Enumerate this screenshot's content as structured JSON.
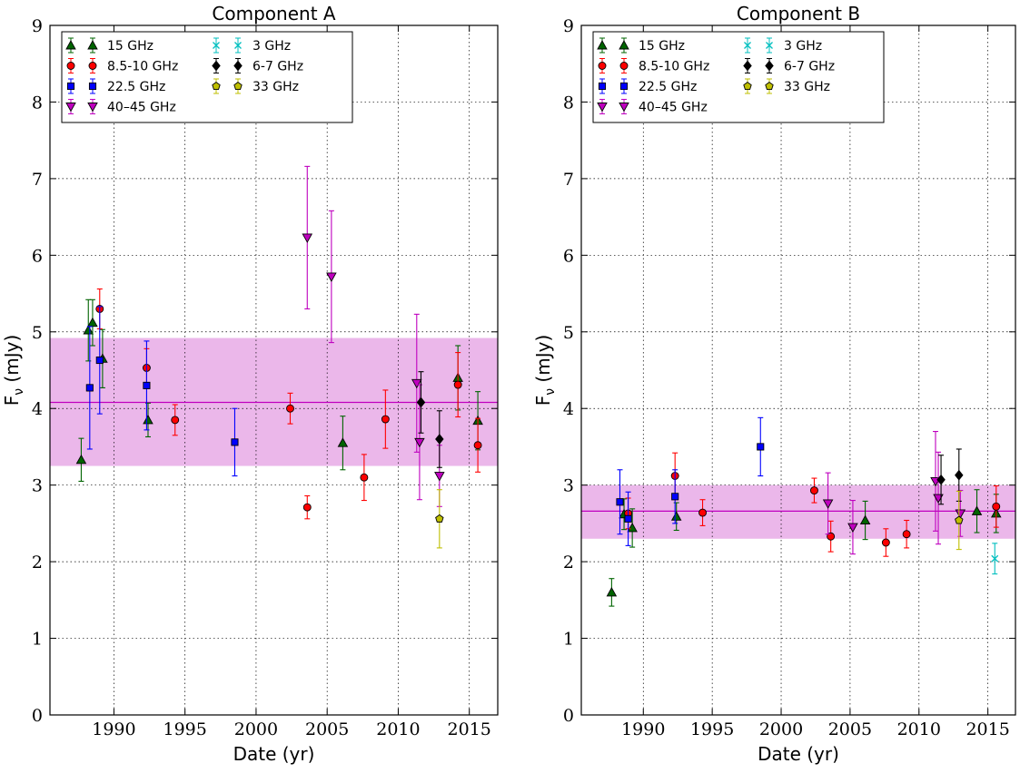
{
  "chart_data": [
    {
      "type": "scatter",
      "title": "Component A",
      "xlabel": "Date (yr)",
      "ylabel": "F_ν (mJy)",
      "xlim": [
        1985.5,
        2017
      ],
      "ylim": [
        0,
        9
      ],
      "xticks": [
        1990,
        1995,
        2000,
        2005,
        2010,
        2015
      ],
      "yticks": [
        0,
        1,
        2,
        3,
        4,
        5,
        6,
        7,
        8,
        9
      ],
      "grid": "on (dotted)",
      "legend_placement": "top-left",
      "mean": 4.08,
      "band": [
        3.25,
        4.92
      ],
      "band_color": "#ebb7ea",
      "mean_color": "#bf00bf",
      "series": [
        {
          "name": "15 GHz",
          "marker": "triangle-up",
          "color": "#006400",
          "points": [
            {
              "x": 1987.7,
              "y": 3.33,
              "err": 0.28
            },
            {
              "x": 1988.2,
              "y": 5.02,
              "err": 0.4
            },
            {
              "x": 1988.5,
              "y": 5.12,
              "err": 0.3
            },
            {
              "x": 1989.2,
              "y": 4.65,
              "err": 0.38
            },
            {
              "x": 1992.4,
              "y": 3.85,
              "err": 0.22
            },
            {
              "x": 2006.1,
              "y": 3.55,
              "err": 0.35
            },
            {
              "x": 2014.2,
              "y": 4.4,
              "err": 0.42
            },
            {
              "x": 2015.6,
              "y": 3.84,
              "err": 0.38
            }
          ]
        },
        {
          "name": "8.5-10 GHz",
          "marker": "circle",
          "color": "#ff0000",
          "points": [
            {
              "x": 1989.0,
              "y": 5.3,
              "err": 0.26
            },
            {
              "x": 1992.3,
              "y": 4.53,
              "err": 0.25
            },
            {
              "x": 1994.3,
              "y": 3.85,
              "err": 0.2
            },
            {
              "x": 2002.4,
              "y": 4.0,
              "err": 0.2
            },
            {
              "x": 2003.6,
              "y": 2.71,
              "err": 0.15
            },
            {
              "x": 2007.6,
              "y": 3.1,
              "err": 0.3
            },
            {
              "x": 2009.1,
              "y": 3.86,
              "err": 0.38
            },
            {
              "x": 2014.2,
              "y": 4.31,
              "err": 0.42
            },
            {
              "x": 2015.6,
              "y": 3.52,
              "err": 0.35
            }
          ]
        },
        {
          "name": "22.5 GHz",
          "marker": "square",
          "color": "#0000ff",
          "points": [
            {
              "x": 1988.3,
              "y": 4.27,
              "err": 0.8
            },
            {
              "x": 1989.0,
              "y": 4.63,
              "err": 0.7
            },
            {
              "x": 1992.3,
              "y": 4.3,
              "err": 0.58
            },
            {
              "x": 1998.5,
              "y": 3.56,
              "err": 0.44
            }
          ]
        },
        {
          "name": "40–45 GHz",
          "marker": "triangle-down",
          "color": "#bf00bf",
          "points": [
            {
              "x": 2003.6,
              "y": 6.23,
              "err": 0.93
            },
            {
              "x": 2005.3,
              "y": 5.72,
              "err": 0.86
            },
            {
              "x": 2011.3,
              "y": 4.33,
              "err": 0.9
            },
            {
              "x": 2011.5,
              "y": 3.56,
              "err": 0.75
            },
            {
              "x": 2012.9,
              "y": 3.12,
              "err": 0.4
            }
          ]
        },
        {
          "name": "3 GHz",
          "marker": "x",
          "color": "#00bfbf",
          "points": []
        },
        {
          "name": "6-7 GHz",
          "marker": "diamond",
          "color": "#000000",
          "points": [
            {
              "x": 2011.6,
              "y": 4.08,
              "err": 0.4
            },
            {
              "x": 2012.9,
              "y": 3.6,
              "err": 0.37
            }
          ]
        },
        {
          "name": "33 GHz",
          "marker": "pentagon",
          "color": "#bfbf00",
          "points": [
            {
              "x": 2012.9,
              "y": 2.56,
              "err": 0.38
            }
          ]
        }
      ]
    },
    {
      "type": "scatter",
      "title": "Component B",
      "xlabel": "Date (yr)",
      "ylabel": "F_ν (mJy)",
      "xlim": [
        1985.5,
        2017
      ],
      "ylim": [
        0,
        9
      ],
      "xticks": [
        1990,
        1995,
        2000,
        2005,
        2010,
        2015
      ],
      "yticks": [
        0,
        1,
        2,
        3,
        4,
        5,
        6,
        7,
        8,
        9
      ],
      "grid": "on (dotted)",
      "legend_placement": "top-left",
      "mean": 2.66,
      "band": [
        2.3,
        3.0
      ],
      "band_color": "#ebb7ea",
      "mean_color": "#bf00bf",
      "series": [
        {
          "name": "15 GHz",
          "marker": "triangle-up",
          "color": "#006400",
          "points": [
            {
              "x": 1987.7,
              "y": 1.6,
              "err": 0.18
            },
            {
              "x": 1988.6,
              "y": 2.62,
              "err": 0.2
            },
            {
              "x": 1989.2,
              "y": 2.44,
              "err": 0.25
            },
            {
              "x": 1992.4,
              "y": 2.59,
              "err": 0.18
            },
            {
              "x": 2006.1,
              "y": 2.54,
              "err": 0.25
            },
            {
              "x": 2014.2,
              "y": 2.66,
              "err": 0.28
            },
            {
              "x": 2015.6,
              "y": 2.63,
              "err": 0.25
            }
          ]
        },
        {
          "name": "8.5-10 GHz",
          "marker": "circle",
          "color": "#ff0000",
          "points": [
            {
              "x": 1988.9,
              "y": 2.63,
              "err": 0.2
            },
            {
              "x": 1992.3,
              "y": 3.12,
              "err": 0.3
            },
            {
              "x": 1994.3,
              "y": 2.64,
              "err": 0.17
            },
            {
              "x": 2002.4,
              "y": 2.93,
              "err": 0.16
            },
            {
              "x": 2003.6,
              "y": 2.33,
              "err": 0.2
            },
            {
              "x": 2007.6,
              "y": 2.25,
              "err": 0.18
            },
            {
              "x": 2009.1,
              "y": 2.36,
              "err": 0.18
            },
            {
              "x": 2015.6,
              "y": 2.72,
              "err": 0.27
            }
          ]
        },
        {
          "name": "22.5 GHz",
          "marker": "square",
          "color": "#0000ff",
          "points": [
            {
              "x": 1988.3,
              "y": 2.78,
              "err": 0.42
            },
            {
              "x": 1988.9,
              "y": 2.56,
              "err": 0.35
            },
            {
              "x": 1992.3,
              "y": 2.85,
              "err": 0.35
            },
            {
              "x": 1998.5,
              "y": 3.5,
              "err": 0.38
            }
          ]
        },
        {
          "name": "40–45 GHz",
          "marker": "triangle-down",
          "color": "#bf00bf",
          "points": [
            {
              "x": 2003.4,
              "y": 2.76,
              "err": 0.4
            },
            {
              "x": 2005.2,
              "y": 2.45,
              "err": 0.35
            },
            {
              "x": 2011.2,
              "y": 3.05,
              "err": 0.65
            },
            {
              "x": 2011.4,
              "y": 2.83,
              "err": 0.6
            },
            {
              "x": 2013.0,
              "y": 2.63,
              "err": 0.3
            }
          ]
        },
        {
          "name": "3 GHz",
          "marker": "x",
          "color": "#00bfbf",
          "points": [
            {
              "x": 2015.5,
              "y": 2.04,
              "err": 0.2
            }
          ]
        },
        {
          "name": "6-7 GHz",
          "marker": "diamond",
          "color": "#000000",
          "points": [
            {
              "x": 2011.6,
              "y": 3.07,
              "err": 0.32
            },
            {
              "x": 2012.9,
              "y": 3.13,
              "err": 0.34
            }
          ]
        },
        {
          "name": "33 GHz",
          "marker": "pentagon",
          "color": "#bfbf00",
          "points": [
            {
              "x": 2012.9,
              "y": 2.54,
              "err": 0.38
            }
          ]
        }
      ]
    }
  ]
}
